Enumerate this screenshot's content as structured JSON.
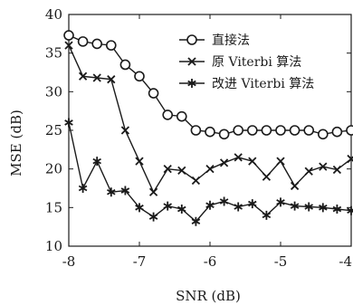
{
  "chart_data": {
    "type": "line",
    "xlabel": "SNR (dB)",
    "ylabel": "MSE (dB)",
    "xlim": [
      -8,
      -4
    ],
    "ylim": [
      10,
      40
    ],
    "x_ticks": [
      -8,
      -7,
      -6,
      -5,
      -4
    ],
    "x_tick_labels": [
      "-8",
      "-7",
      "-6",
      "-5",
      "-4"
    ],
    "y_ticks": [
      10,
      15,
      20,
      25,
      30,
      35,
      40
    ],
    "y_tick_labels": [
      "10",
      "15",
      "20",
      "25",
      "30",
      "35",
      "40"
    ],
    "grid": false,
    "legend_position": "top-right",
    "colors": {
      "line": "#1a1a1a",
      "axis": "#1a1a1a",
      "background": "#ffffff"
    },
    "x": [
      -8.0,
      -7.8,
      -7.6,
      -7.4,
      -7.2,
      -7.0,
      -6.8,
      -6.6,
      -6.4,
      -6.2,
      -6.0,
      -5.8,
      -5.6,
      -5.4,
      -5.2,
      -5.0,
      -4.8,
      -4.6,
      -4.4,
      -4.2,
      -4.0
    ],
    "series": [
      {
        "name": "直接法",
        "marker": "circle",
        "values": [
          37.3,
          36.5,
          36.2,
          36.0,
          33.5,
          32.0,
          29.8,
          27.0,
          26.8,
          25.0,
          24.8,
          24.5,
          25.0,
          25.0,
          25.0,
          25.0,
          25.0,
          25.0,
          24.5,
          24.8,
          25.0
        ]
      },
      {
        "name": "原 Viterbi 算法",
        "marker": "x",
        "values": [
          36.0,
          32.0,
          31.8,
          31.6,
          25.0,
          21.0,
          17.0,
          20.0,
          19.8,
          18.5,
          20.0,
          20.8,
          21.5,
          21.0,
          19.0,
          21.0,
          17.8,
          19.7,
          20.3,
          19.9,
          21.3
        ]
      },
      {
        "name": "改进 Viterbi 算法",
        "marker": "asterisk",
        "values": [
          26.0,
          17.5,
          21.0,
          17.0,
          17.2,
          15.0,
          13.8,
          15.2,
          14.8,
          13.2,
          15.3,
          15.8,
          15.1,
          15.5,
          14.0,
          15.7,
          15.2,
          15.1,
          15.0,
          14.8,
          14.6
        ]
      }
    ]
  }
}
